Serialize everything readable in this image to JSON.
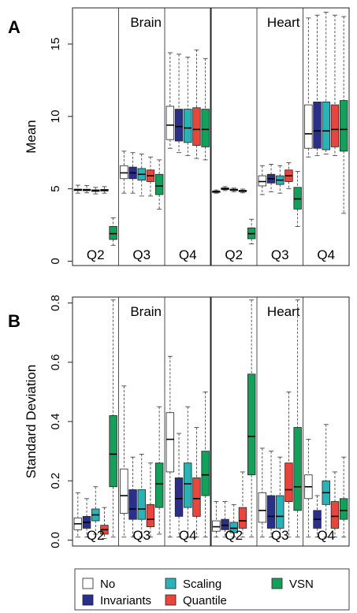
{
  "figure": {
    "colors": {
      "No": "#ffffff",
      "Invariants": "#2a2f8c",
      "Scaling": "#29b3b6",
      "Quantile": "#e8463c",
      "VSN": "#14a05a"
    },
    "legend": {
      "placement": "bottom",
      "entries": [
        "No",
        "Invariants",
        "Scaling",
        "Quantile",
        "VSN"
      ]
    }
  },
  "chart_data": [
    {
      "type": "boxplot",
      "panel": "A",
      "ylabel": "Mean",
      "ylim": [
        -0.3,
        17.5
      ],
      "yticks": [
        0,
        5,
        10,
        15
      ],
      "tissues": [
        "Brain",
        "Heart"
      ],
      "quartiles": [
        "Q2",
        "Q3",
        "Q4"
      ],
      "methods": [
        "No",
        "Invariants",
        "Scaling",
        "Quantile",
        "VSN"
      ],
      "boxes": {
        "Brain": {
          "Q2": [
            {
              "method": "No",
              "whisker_low": 4.7,
              "q1": 4.88,
              "median": 4.93,
              "q3": 4.98,
              "whisker_high": 5.25
            },
            {
              "method": "Invariants",
              "whisker_low": 4.72,
              "q1": 4.87,
              "median": 4.92,
              "q3": 4.97,
              "whisker_high": 5.22
            },
            {
              "method": "Scaling",
              "whisker_low": 4.65,
              "q1": 4.82,
              "median": 4.87,
              "q3": 4.93,
              "whisker_high": 5.1
            },
            {
              "method": "Quantile",
              "whisker_low": 4.7,
              "q1": 4.85,
              "median": 4.9,
              "q3": 4.96,
              "whisker_high": 5.15
            },
            {
              "method": "VSN",
              "whisker_low": 1.1,
              "q1": 1.5,
              "median": 1.9,
              "q3": 2.4,
              "whisker_high": 3.0
            }
          ],
          "Q3": [
            {
              "method": "No",
              "whisker_low": 4.7,
              "q1": 5.7,
              "median": 6.1,
              "q3": 6.6,
              "whisker_high": 7.6
            },
            {
              "method": "Invariants",
              "whisker_low": 4.7,
              "q1": 5.7,
              "median": 6.1,
              "q3": 6.5,
              "whisker_high": 7.5
            },
            {
              "method": "Scaling",
              "whisker_low": 4.5,
              "q1": 5.6,
              "median": 6.0,
              "q3": 6.4,
              "whisker_high": 7.4
            },
            {
              "method": "Quantile",
              "whisker_low": 4.5,
              "q1": 5.5,
              "median": 5.9,
              "q3": 6.3,
              "whisker_high": 7.2
            },
            {
              "method": "VSN",
              "whisker_low": 3.6,
              "q1": 4.6,
              "median": 5.2,
              "q3": 6.0,
              "whisker_high": 7.0
            }
          ],
          "Q4": [
            {
              "method": "No",
              "whisker_low": 7.8,
              "q1": 8.4,
              "median": 9.4,
              "q3": 10.7,
              "whisker_high": 14.4
            },
            {
              "method": "Invariants",
              "whisker_low": 7.5,
              "q1": 8.3,
              "median": 9.3,
              "q3": 10.5,
              "whisker_high": 14.3
            },
            {
              "method": "Scaling",
              "whisker_low": 7.3,
              "q1": 8.2,
              "median": 9.2,
              "q3": 10.5,
              "whisker_high": 14.1
            },
            {
              "method": "Quantile",
              "whisker_low": 7.1,
              "q1": 8.0,
              "median": 9.1,
              "q3": 10.6,
              "whisker_high": 14.6
            },
            {
              "method": "VSN",
              "whisker_low": 7.0,
              "q1": 7.9,
              "median": 9.1,
              "q3": 10.5,
              "whisker_high": 14.0
            }
          ]
        },
        "Heart": {
          "Q2": [
            {
              "method": "No",
              "whisker_low": 4.7,
              "q1": 4.75,
              "median": 4.8,
              "q3": 4.85,
              "whisker_high": 4.92
            },
            {
              "method": "Invariants",
              "whisker_low": 4.88,
              "q1": 4.95,
              "median": 5.0,
              "q3": 5.06,
              "whisker_high": 5.15
            },
            {
              "method": "Scaling",
              "whisker_low": 4.8,
              "q1": 4.88,
              "median": 4.93,
              "q3": 4.98,
              "whisker_high": 5.05
            },
            {
              "method": "Quantile",
              "whisker_low": 4.72,
              "q1": 4.8,
              "median": 4.85,
              "q3": 4.9,
              "whisker_high": 4.98
            },
            {
              "method": "VSN",
              "whisker_low": 1.2,
              "q1": 1.55,
              "median": 1.9,
              "q3": 2.3,
              "whisker_high": 2.9
            }
          ],
          "Q3": [
            {
              "method": "No",
              "whisker_low": 4.6,
              "q1": 5.2,
              "median": 5.5,
              "q3": 5.9,
              "whisker_high": 6.6
            },
            {
              "method": "Invariants",
              "whisker_low": 4.8,
              "q1": 5.4,
              "median": 5.7,
              "q3": 6.0,
              "whisker_high": 6.7
            },
            {
              "method": "Scaling",
              "whisker_low": 4.7,
              "q1": 5.3,
              "median": 5.6,
              "q3": 5.9,
              "whisker_high": 6.6
            },
            {
              "method": "Quantile",
              "whisker_low": 5.0,
              "q1": 5.5,
              "median": 5.9,
              "q3": 6.3,
              "whisker_high": 6.8
            },
            {
              "method": "VSN",
              "whisker_low": 2.4,
              "q1": 3.6,
              "median": 4.3,
              "q3": 5.1,
              "whisker_high": 6.2
            }
          ],
          "Q4": [
            {
              "method": "No",
              "whisker_low": 7.2,
              "q1": 7.8,
              "median": 8.8,
              "q3": 10.8,
              "whisker_high": 16.8
            },
            {
              "method": "Invariants",
              "whisker_low": 7.3,
              "q1": 7.8,
              "median": 9.0,
              "q3": 11.0,
              "whisker_high": 17.0
            },
            {
              "method": "Scaling",
              "whisker_low": 7.4,
              "q1": 7.7,
              "median": 9.0,
              "q3": 11.0,
              "whisker_high": 17.2
            },
            {
              "method": "Quantile",
              "whisker_low": 7.3,
              "q1": 7.9,
              "median": 9.1,
              "q3": 10.8,
              "whisker_high": 17.0
            },
            {
              "method": "VSN",
              "whisker_low": 3.3,
              "q1": 7.6,
              "median": 9.1,
              "q3": 11.1,
              "whisker_high": 16.9
            }
          ]
        }
      }
    },
    {
      "type": "boxplot",
      "panel": "B",
      "ylabel": "Standard Deviation",
      "ylim": [
        -0.02,
        0.82
      ],
      "yticks": [
        0.0,
        0.2,
        0.4,
        0.6,
        0.8
      ],
      "tissues": [
        "Brain",
        "Heart"
      ],
      "quartiles": [
        "Q2",
        "Q3",
        "Q4"
      ],
      "methods": [
        "No",
        "Invariants",
        "Scaling",
        "Quantile",
        "VSN"
      ],
      "boxes": {
        "Brain": {
          "Q2": [
            {
              "method": "No",
              "whisker_low": 0.01,
              "q1": 0.035,
              "median": 0.055,
              "q3": 0.075,
              "whisker_high": 0.16
            },
            {
              "method": "Invariants",
              "whisker_low": 0.01,
              "q1": 0.04,
              "median": 0.06,
              "q3": 0.08,
              "whisker_high": 0.14
            },
            {
              "method": "Scaling",
              "whisker_low": 0.02,
              "q1": 0.065,
              "median": 0.085,
              "q3": 0.105,
              "whisker_high": 0.18
            },
            {
              "method": "Quantile",
              "whisker_low": 0.005,
              "q1": 0.02,
              "median": 0.035,
              "q3": 0.05,
              "whisker_high": 0.11
            },
            {
              "method": "VSN",
              "whisker_low": 0.01,
              "q1": 0.18,
              "median": 0.29,
              "q3": 0.42,
              "whisker_high": 0.81
            }
          ],
          "Q3": [
            {
              "method": "No",
              "whisker_low": 0.01,
              "q1": 0.09,
              "median": 0.15,
              "q3": 0.24,
              "whisker_high": 0.52
            },
            {
              "method": "Invariants",
              "whisker_low": 0.01,
              "q1": 0.07,
              "median": 0.105,
              "q3": 0.17,
              "whisker_high": 0.28
            },
            {
              "method": "Scaling",
              "whisker_low": 0.01,
              "q1": 0.07,
              "median": 0.105,
              "q3": 0.17,
              "whisker_high": 0.29
            },
            {
              "method": "Quantile",
              "whisker_low": 0.01,
              "q1": 0.045,
              "median": 0.07,
              "q3": 0.12,
              "whisker_high": 0.26
            },
            {
              "method": "VSN",
              "whisker_low": 0.02,
              "q1": 0.11,
              "median": 0.19,
              "q3": 0.26,
              "whisker_high": 0.45
            }
          ],
          "Q4": [
            {
              "method": "No",
              "whisker_low": 0.01,
              "q1": 0.23,
              "median": 0.34,
              "q3": 0.43,
              "whisker_high": 0.62
            },
            {
              "method": "Invariants",
              "whisker_low": 0.01,
              "q1": 0.08,
              "median": 0.14,
              "q3": 0.21,
              "whisker_high": 0.36
            },
            {
              "method": "Scaling",
              "whisker_low": 0.01,
              "q1": 0.11,
              "median": 0.19,
              "q3": 0.26,
              "whisker_high": 0.45
            },
            {
              "method": "Quantile",
              "whisker_low": 0.01,
              "q1": 0.08,
              "median": 0.14,
              "q3": 0.21,
              "whisker_high": 0.38
            },
            {
              "method": "VSN",
              "whisker_low": 0.01,
              "q1": 0.15,
              "median": 0.22,
              "q3": 0.3,
              "whisker_high": 0.5
            }
          ]
        },
        "Heart": {
          "Q2": [
            {
              "method": "No",
              "whisker_low": 0.01,
              "q1": 0.03,
              "median": 0.045,
              "q3": 0.065,
              "whisker_high": 0.13
            },
            {
              "method": "Invariants",
              "whisker_low": 0.01,
              "q1": 0.035,
              "median": 0.05,
              "q3": 0.07,
              "whisker_high": 0.13
            },
            {
              "method": "Scaling",
              "whisker_low": 0.01,
              "q1": 0.025,
              "median": 0.04,
              "q3": 0.06,
              "whisker_high": 0.12
            },
            {
              "method": "Quantile",
              "whisker_low": 0.01,
              "q1": 0.04,
              "median": 0.065,
              "q3": 0.11,
              "whisker_high": 0.23
            },
            {
              "method": "VSN",
              "whisker_low": 0.01,
              "q1": 0.22,
              "median": 0.35,
              "q3": 0.56,
              "whisker_high": 0.81
            }
          ],
          "Q3": [
            {
              "method": "No",
              "whisker_low": 0.01,
              "q1": 0.06,
              "median": 0.1,
              "q3": 0.16,
              "whisker_high": 0.31
            },
            {
              "method": "Invariants",
              "whisker_low": 0.01,
              "q1": 0.04,
              "median": 0.08,
              "q3": 0.15,
              "whisker_high": 0.3
            },
            {
              "method": "Scaling",
              "whisker_low": 0.01,
              "q1": 0.04,
              "median": 0.08,
              "q3": 0.15,
              "whisker_high": 0.28
            },
            {
              "method": "Quantile",
              "whisker_low": 0.01,
              "q1": 0.13,
              "median": 0.17,
              "q3": 0.26,
              "whisker_high": 0.5
            },
            {
              "method": "VSN",
              "whisker_low": 0.01,
              "q1": 0.1,
              "median": 0.18,
              "q3": 0.38,
              "whisker_high": 0.81
            }
          ],
          "Q4": [
            {
              "method": "No",
              "whisker_low": 0.01,
              "q1": 0.14,
              "median": 0.18,
              "q3": 0.22,
              "whisker_high": 0.34
            },
            {
              "method": "Invariants",
              "whisker_low": 0.01,
              "q1": 0.04,
              "median": 0.07,
              "q3": 0.1,
              "whisker_high": 0.15
            },
            {
              "method": "Scaling",
              "whisker_low": 0.01,
              "q1": 0.12,
              "median": 0.16,
              "q3": 0.2,
              "whisker_high": 0.39
            },
            {
              "method": "Quantile",
              "whisker_low": 0.01,
              "q1": 0.04,
              "median": 0.08,
              "q3": 0.13,
              "whisker_high": 0.23
            },
            {
              "method": "VSN",
              "whisker_low": 0.01,
              "q1": 0.07,
              "median": 0.1,
              "q3": 0.14,
              "whisker_high": 0.28
            }
          ]
        }
      }
    }
  ]
}
